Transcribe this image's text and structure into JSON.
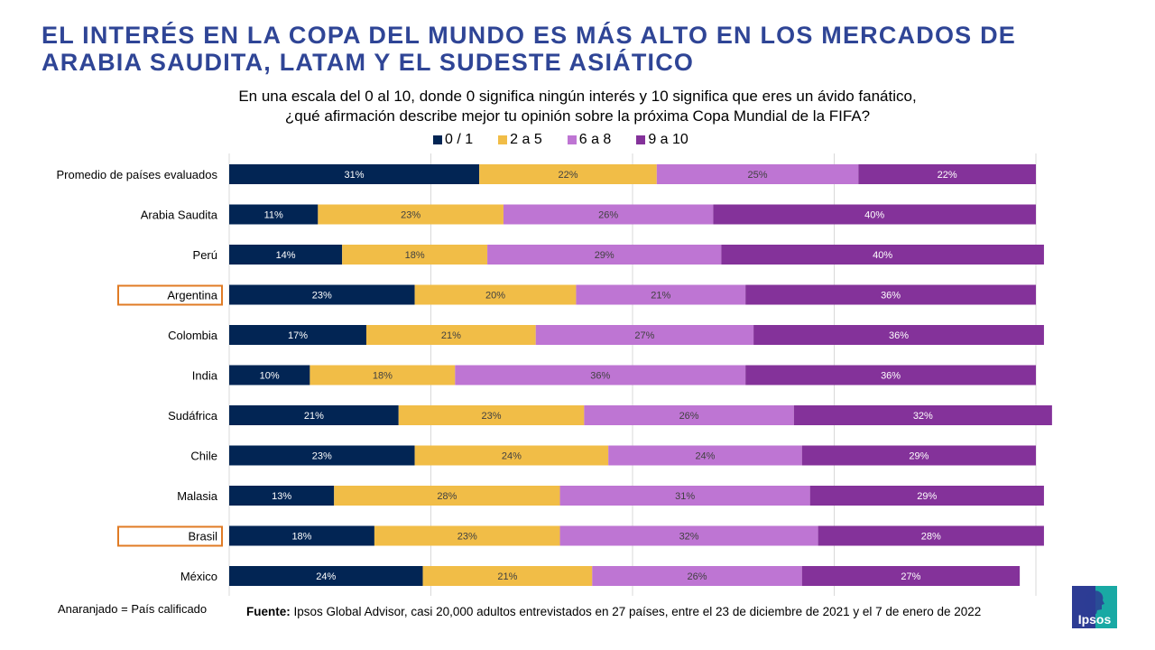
{
  "title": "EL INTERÉS EN LA COPA DEL MUNDO ES MÁS ALTO EN LOS MERCADOS DE ARABIA SAUDITA, LATAM Y EL SUDESTE ASIÁTICO",
  "subtitle_line1": "En una escala del 0 al 10, donde 0 significa ningún interés y 10 significa que eres un ávido fanático,",
  "subtitle_line2": "¿qué afirmación describe mejor tu opinión sobre la próxima Copa Mundial de la FIFA?",
  "note": "Anaranjado = País calificado",
  "source_label": "Fuente:",
  "source_text": "Ipsos Global Advisor, casi 20,000 adultos entrevistados en 27 países, entre el 23 de diciembre de 2021 y el 7 de enero de 2022",
  "logo_text": "Ipsos",
  "highlight_color": "#E07B24",
  "chart_data": {
    "type": "bar",
    "orientation": "horizontal",
    "stacked": true,
    "xlim": [
      0,
      100
    ],
    "grid": true,
    "legend_position": "top",
    "categories": [
      "Promedio de países evaluados",
      "Arabia Saudita",
      "Perú",
      "Argentina",
      "Colombia",
      "India",
      "Sudáfrica",
      "Chile",
      "Malasia",
      "Brasil",
      "México"
    ],
    "highlighted": [
      "Argentina",
      "Brasil"
    ],
    "series": [
      {
        "name": "0 / 1",
        "color": "#022554",
        "label_color": "#ffffff",
        "values": [
          31,
          11,
          14,
          23,
          17,
          10,
          21,
          23,
          13,
          18,
          24
        ]
      },
      {
        "name": "2 a 5",
        "color": "#F1BD47",
        "label_color": "#404040",
        "values": [
          22,
          23,
          18,
          20,
          21,
          18,
          23,
          24,
          28,
          23,
          21
        ]
      },
      {
        "name": "6 a 8",
        "color": "#BE75D3",
        "label_color": "#404040",
        "values": [
          25,
          26,
          29,
          21,
          27,
          36,
          26,
          24,
          31,
          32,
          26
        ]
      },
      {
        "name": "9 a 10",
        "color": "#84329A",
        "label_color": "#ffffff",
        "values": [
          22,
          40,
          40,
          36,
          36,
          36,
          32,
          29,
          29,
          28,
          27
        ]
      }
    ]
  }
}
